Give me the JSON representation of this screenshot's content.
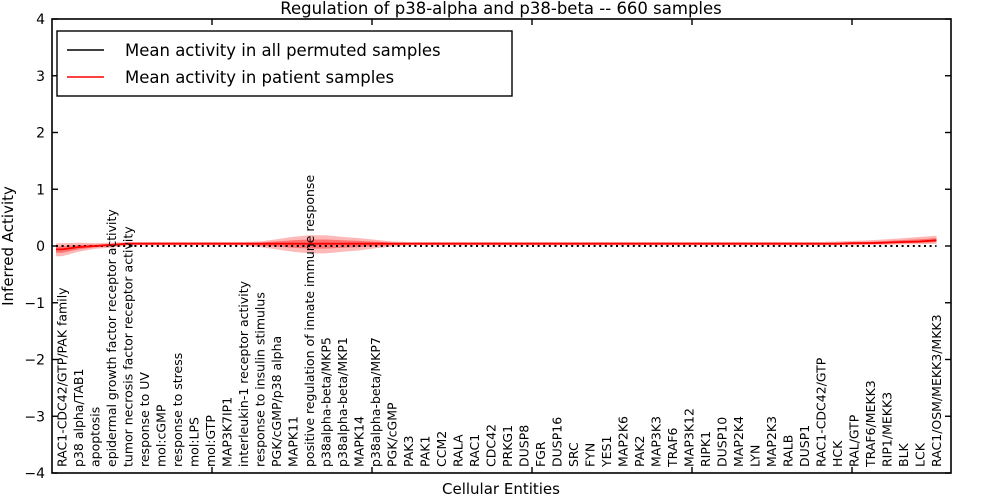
{
  "figure": {
    "title": "Regulation of p38-alpha and p38-beta -- 660 samples",
    "xlabel": "Cellular Entities",
    "ylabel": "Inferred Activity"
  },
  "chart_data": {
    "type": "line",
    "title": "Regulation of p38-alpha and p38-beta -- 660 samples",
    "xlabel": "Cellular Entities",
    "ylabel": "Inferred Activity",
    "ylim": [
      -4,
      4
    ],
    "grid": false,
    "legend_position": "upper left",
    "yticks": [
      "4",
      "3",
      "2",
      "1",
      "0",
      "−1",
      "−2",
      "−3",
      "−4"
    ],
    "categories": [
      "RAC1-CDC42/GTP/PAK family",
      "p38 alpha/TAB1",
      "apoptosis",
      "epidermal growth factor receptor activity",
      "tumor necrosis factor receptor activity",
      "response to UV",
      "mol:cGMP",
      "response to stress",
      "mol:LPS",
      "mol:GTP",
      "MAP3K7IP1",
      "interleukin-1 receptor activity",
      "response to insulin stimulus",
      "PGK/cGMP/p38 alpha",
      "MAPK11",
      "positive regulation of innate immune response",
      "p38alpha-beta/MKP5",
      "p38alpha-beta/MKP1",
      "MAPK14",
      "p38alpha-beta/MKP7",
      "PGK/cGMP",
      "PAK3",
      "PAK1",
      "CCM2",
      "RALA",
      "RAC1",
      "CDC42",
      "PRKG1",
      "DUSP8",
      "FGR",
      "DUSP16",
      "SRC",
      "FYN",
      "YES1",
      "MAP2K6",
      "PAK2",
      "MAP3K3",
      "TRAF6",
      "MAP3K12",
      "RIPK1",
      "DUSP10",
      "MAP2K4",
      "LYN",
      "MAP2K3",
      "RALB",
      "DUSP1",
      "RAC1-CDC42/GTP",
      "HCK",
      "RAL/GTP",
      "TRAF6/MEKK3",
      "RIP1/MEKK3",
      "BLK",
      "LCK",
      "RAC1/OSM/MEKK3/MKK3"
    ],
    "series": [
      {
        "name": "Mean activity in all permuted samples",
        "color": "#000000",
        "style": "dashed",
        "values": [
          0,
          0,
          0,
          0,
          0,
          0,
          0,
          0,
          0,
          0,
          0,
          0,
          0,
          0,
          0,
          0,
          0,
          0,
          0,
          0,
          0,
          0,
          0,
          0,
          0,
          0,
          0,
          0,
          0,
          0,
          0,
          0,
          0,
          0,
          0,
          0,
          0,
          0,
          0,
          0,
          0,
          0,
          0,
          0,
          0,
          0,
          0,
          0,
          0,
          0,
          0,
          0,
          0,
          0
        ]
      },
      {
        "name": "Mean activity in patient samples",
        "color": "#ff0000",
        "style": "solid",
        "values": [
          -0.06,
          -0.02,
          0.0,
          0.02,
          0.04,
          0.04,
          0.04,
          0.04,
          0.04,
          0.04,
          0.04,
          0.04,
          0.04,
          0.04,
          0.04,
          0.04,
          0.04,
          0.04,
          0.04,
          0.04,
          0.04,
          0.04,
          0.04,
          0.04,
          0.04,
          0.04,
          0.04,
          0.04,
          0.04,
          0.04,
          0.04,
          0.04,
          0.04,
          0.04,
          0.04,
          0.04,
          0.04,
          0.04,
          0.04,
          0.04,
          0.04,
          0.04,
          0.04,
          0.04,
          0.04,
          0.04,
          0.04,
          0.04,
          0.05,
          0.05,
          0.06,
          0.07,
          0.08,
          0.1
        ]
      }
    ],
    "patient_band": {
      "description": "shaded spread of patient sample activity around the patient mean",
      "fill": "#ff0000",
      "upper": [
        0.05,
        0.06,
        0.05,
        0.06,
        0.07,
        0.07,
        0.07,
        0.07,
        0.07,
        0.07,
        0.07,
        0.07,
        0.08,
        0.12,
        0.16,
        0.19,
        0.19,
        0.16,
        0.14,
        0.11,
        0.08,
        0.07,
        0.07,
        0.07,
        0.07,
        0.07,
        0.07,
        0.07,
        0.07,
        0.07,
        0.07,
        0.07,
        0.07,
        0.07,
        0.07,
        0.07,
        0.07,
        0.07,
        0.07,
        0.07,
        0.07,
        0.07,
        0.07,
        0.07,
        0.07,
        0.07,
        0.07,
        0.08,
        0.09,
        0.1,
        0.12,
        0.14,
        0.16,
        0.18
      ],
      "lower": [
        -0.18,
        -0.1,
        -0.05,
        -0.03,
        0.01,
        0.01,
        0.01,
        0.01,
        0.01,
        0.01,
        0.01,
        0.01,
        -0.02,
        -0.06,
        -0.1,
        -0.13,
        -0.13,
        -0.1,
        -0.08,
        -0.04,
        -0.01,
        0.01,
        0.01,
        0.01,
        0.01,
        0.01,
        0.01,
        0.01,
        0.01,
        0.01,
        0.01,
        0.01,
        0.01,
        0.01,
        0.01,
        0.01,
        0.01,
        0.01,
        0.01,
        0.01,
        0.01,
        0.01,
        0.01,
        0.01,
        0.01,
        0.01,
        0.01,
        0.01,
        0.01,
        0.02,
        0.02,
        0.03,
        0.03,
        0.04
      ]
    }
  },
  "colors": {
    "permuted_line": "#000000",
    "patient_line": "#ff0000",
    "band_fill_outer": "rgba(255,0,0,0.28)",
    "band_fill_inner": "rgba(255,0,0,0.38)",
    "frame": "#000000",
    "background": "#ffffff"
  }
}
